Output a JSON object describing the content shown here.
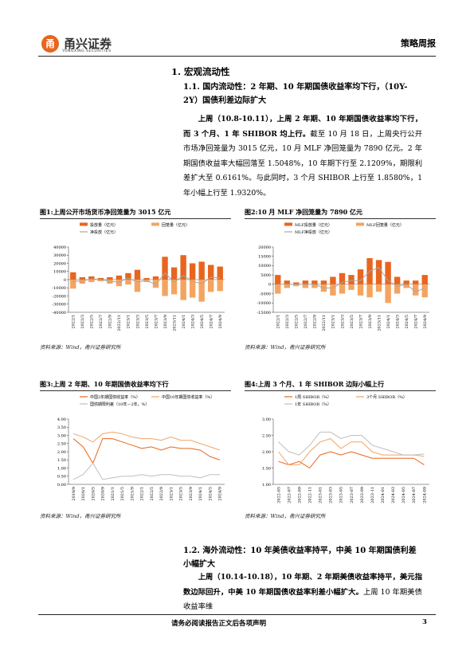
{
  "header": {
    "logo_cn": "甬兴证券",
    "logo_en": "YONGXING SECURITIES",
    "label": "策略周报"
  },
  "section": {
    "title": "1. 宏观流动性"
  },
  "subsections": [
    {
      "title": "1.1. 国内流动性：2 年期、10 年期国债收益率均下行，（10Y-2Y）国债利差边际扩大",
      "paragraph": {
        "bold": "上周（10.8-10.11），上周 2 年期、10 年期国债收益率均下行，而 3 个月、1 年 SHIBOR 均上行。",
        "text": "截至 10 月 18 日，上周央行公开市场净回笼量为 3015 亿元，10 月 MLF 净回笼量为 7890 亿元。2 年期国债收益率大幅回落至 1.5048%，10 年期下行至 2.1209%，期限利差扩大至 0.6161%。与此同时，3 个月 SHIBOR 上行至 1.8580%，1 年小幅上行至 1.9320%。"
      }
    },
    {
      "title": "1.2. 海外流动性：10 年美债收益率持平，中美 10 年期国债利差小幅扩大",
      "paragraph": {
        "bold": "上周（10.14-10.18），10 年期、2 年期美债收益率持平，美元指数边际回升，中美 10 年期国债收益率利差小幅扩大。",
        "text": "上周 10 年期美债收益率维"
      }
    }
  ],
  "figures": [
    {
      "title": "图1:上周公开市场货币净回笼量为 3015 亿元",
      "source": "资料来源：Wind，甬兴证券研究所",
      "chart": {
        "type": "combo",
        "categories": [
          "2022/1",
          "2022/3",
          "2022/5",
          "2022/7",
          "2022/9",
          "2022/11",
          "2023/1",
          "2023/3",
          "2023/5",
          "2023/7",
          "2023/9",
          "2023/11",
          "2024/1",
          "2024/3",
          "2024/5",
          "2024/7",
          "2024/9"
        ],
        "series": [
          {
            "name": "投放量（亿元）",
            "type": "bar",
            "color": "#e8651e",
            "values": [
              9000,
              3000,
              4000,
              2000,
              3000,
              5000,
              8000,
              12000,
              2000,
              4000,
              28000,
              15000,
              30000,
              20000,
              22000,
              18000,
              16000
            ]
          },
          {
            "name": "回笼量（亿元）",
            "type": "bar",
            "color": "#f4a460",
            "values": [
              -11000,
              -5000,
              -3000,
              -2000,
              -5000,
              -8000,
              -6000,
              -15000,
              -3000,
              -10000,
              -20000,
              -18000,
              -25000,
              -22000,
              -27000,
              -15000,
              -14000
            ]
          },
          {
            "name": "净投放（亿元）",
            "type": "line",
            "color": "#a6a6a6",
            "values": [
              -2000,
              -2000,
              1000,
              0,
              -2000,
              -3000,
              2000,
              -3000,
              -1000,
              -6000,
              8000,
              -3000,
              5000,
              -2000,
              -5000,
              3000,
              2000
            ]
          }
        ],
        "ylim": [
          -40000,
          40000
        ],
        "yticks": [
          -40000,
          -30000,
          -20000,
          -10000,
          0,
          10000,
          20000,
          30000,
          40000
        ]
      }
    },
    {
      "title": "图2:10 月 MLF 净回笼量为 7890 亿元",
      "source": "资料来源：Wind，甬兴证券研究所",
      "chart": {
        "type": "combo",
        "categories": [
          "2022/1",
          "2022/3",
          "2022/5",
          "2022/7",
          "2022/9",
          "2022/11",
          "2023/1",
          "2023/3",
          "2023/5",
          "2023/7",
          "2023/9",
          "2023/11",
          "2024/1",
          "2024/3",
          "2024/5",
          "2024/7",
          "2024/9"
        ],
        "series": [
          {
            "name": "MLF投放量（亿元）",
            "type": "bar",
            "color": "#e8651e",
            "values": [
              5000,
              2000,
              1000,
              2000,
              2000,
              2000,
              4000,
              6000,
              5000,
              8000,
              14000,
              13000,
              12000,
              4000,
              2000,
              2000,
              5000
            ]
          },
          {
            "name": "MLF回笼量（亿元）",
            "type": "bar",
            "color": "#f4a460",
            "values": [
              -5000,
              -2000,
              -1000,
              -2000,
              -2000,
              -4000,
              -6000,
              -5000,
              -3000,
              -6000,
              -7000,
              -4000,
              -10000,
              -5000,
              -2000,
              -6000,
              -7000
            ]
          },
          {
            "name": "MLF净投放（亿元）",
            "type": "line",
            "color": "#a6a6a6",
            "values": [
              0,
              0,
              0,
              0,
              0,
              -2000,
              -2000,
              1000,
              2000,
              2000,
              7000,
              9000,
              2000,
              -1000,
              0,
              -4000,
              -2000
            ]
          }
        ],
        "ylim": [
          -15000,
          20000
        ],
        "yticks": [
          -15000,
          -10000,
          -5000,
          0,
          5000,
          10000,
          15000,
          20000
        ]
      }
    },
    {
      "title": "图3:上周 2 年期、10 年期国债收益率均下行",
      "source": "资料来源：Wind，甬兴证券研究所",
      "chart": {
        "type": "line",
        "categories": [
          "2019/9",
          "2020/1",
          "2020/5",
          "2020/9",
          "2021/1",
          "2021/5",
          "2021/9",
          "2022/1",
          "2022/5",
          "2022/9",
          "2023/1",
          "2023/5",
          "2023/9",
          "2024/1",
          "2024/5",
          "2024/9"
        ],
        "series": [
          {
            "name": "中国2年期国债收益率（%）",
            "type": "line",
            "color": "#e8651e",
            "values": [
              2.8,
              2.3,
              1.3,
              2.8,
              2.8,
              2.6,
              2.4,
              2.2,
              2.3,
              2.1,
              2.3,
              2.2,
              2.2,
              2.1,
              1.7,
              1.5
            ]
          },
          {
            "name": "中国10年期国债收益率（%）",
            "type": "line",
            "color": "#f4a460",
            "values": [
              3.1,
              2.9,
              2.6,
              3.1,
              3.2,
              3.1,
              2.9,
              2.8,
              2.8,
              2.7,
              2.9,
              2.7,
              2.7,
              2.5,
              2.3,
              2.1
            ]
          },
          {
            "name": "国债期限利差（10年－2年，%）",
            "type": "line",
            "color": "#bfbfbf",
            "values": [
              0.3,
              0.6,
              1.3,
              0.3,
              0.4,
              0.5,
              0.5,
              0.6,
              0.5,
              0.6,
              0.6,
              0.5,
              0.5,
              0.4,
              0.6,
              0.6
            ]
          }
        ],
        "ylim": [
          0,
          4
        ],
        "yticks": [
          {
            "value": 0,
            "label": "0.00"
          },
          {
            "value": 0.5,
            "label": "0.50"
          },
          {
            "value": 1,
            "label": "1.00"
          },
          {
            "value": 1.5,
            "label": "1.50"
          },
          {
            "value": 2,
            "label": "2.00"
          },
          {
            "value": 2.5,
            "label": "2.50"
          },
          {
            "value": 3,
            "label": "3.00"
          },
          {
            "value": 3.5,
            "label": "3.50"
          },
          {
            "value": 4,
            "label": "4.00"
          }
        ]
      }
    },
    {
      "title": "图4:上周 3 个月、1 年 SHIBOR 边际小幅上行",
      "source": "资料来源：Wind，甬兴证券研究所",
      "chart": {
        "type": "line",
        "categories": [
          "2022-05",
          "2022-07",
          "2022-09",
          "2022-11",
          "2023-01",
          "2023-03",
          "2023-05",
          "2023-07",
          "2023-09",
          "2023-11",
          "2024-01",
          "2024-03",
          "2024-05",
          "2024-07",
          "2024-09"
        ],
        "series": [
          {
            "name": "1周 SHIBOR（%）",
            "type": "line",
            "color": "#e8651e",
            "values": [
              1.7,
              1.6,
              1.7,
              1.5,
              1.9,
              2.0,
              1.9,
              2.0,
              1.9,
              1.8,
              1.8,
              1.8,
              1.8,
              1.8,
              1.6
            ]
          },
          {
            "name": "3个月 SHIBOR（%）",
            "type": "line",
            "color": "#f4a460",
            "values": [
              2.0,
              1.6,
              1.6,
              2.0,
              2.3,
              2.4,
              2.1,
              2.3,
              2.3,
              2.0,
              1.9,
              1.9,
              1.9,
              1.9,
              1.86
            ]
          },
          {
            "name": "1年 SHIBOR（%）",
            "type": "line",
            "color": "#bfbfbf",
            "values": [
              2.3,
              2.0,
              1.9,
              2.2,
              2.6,
              2.6,
              2.4,
              2.5,
              2.5,
              2.2,
              2.1,
              2.0,
              1.9,
              1.9,
              1.93
            ]
          }
        ],
        "ylim": [
          1,
          3
        ],
        "yticks": [
          {
            "value": 1,
            "label": "1.00"
          },
          {
            "value": 1.5,
            "label": "1.50"
          },
          {
            "value": 2,
            "label": "2.00"
          },
          {
            "value": 2.5,
            "label": "2.50"
          },
          {
            "value": 3,
            "label": "3.00"
          }
        ]
      }
    }
  ],
  "footer": {
    "disclaimer": "请务必阅读报告正文后各项声明",
    "page": "3"
  }
}
